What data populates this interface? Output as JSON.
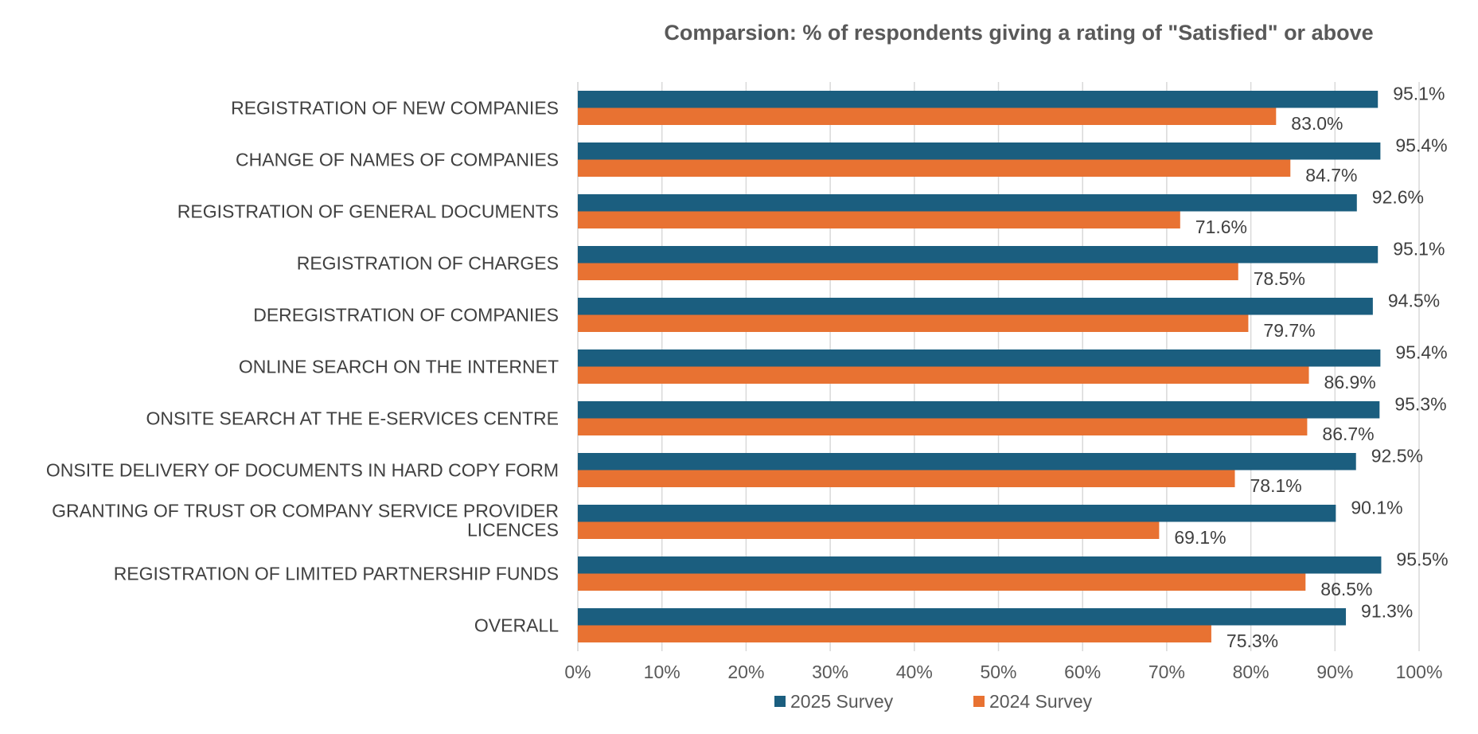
{
  "chart_data": {
    "type": "bar",
    "orientation": "horizontal",
    "title": "Comparsion: % of respondents giving a rating of \"Satisfied\" or above",
    "categories": [
      [
        "REGISTRATION OF NEW COMPANIES"
      ],
      [
        "CHANGE OF NAMES OF COMPANIES"
      ],
      [
        "REGISTRATION OF GENERAL DOCUMENTS"
      ],
      [
        "REGISTRATION OF CHARGES"
      ],
      [
        "DEREGISTRATION OF COMPANIES"
      ],
      [
        "ONLINE SEARCH ON THE INTERNET"
      ],
      [
        "ONSITE SEARCH AT THE E-SERVICES CENTRE"
      ],
      [
        "ONSITE DELIVERY OF DOCUMENTS IN HARD COPY FORM"
      ],
      [
        "GRANTING OF TRUST OR COMPANY SERVICE PROVIDER",
        "LICENCES"
      ],
      [
        "REGISTRATION OF LIMITED PARTNERSHIP FUNDS"
      ],
      [
        "OVERALL"
      ]
    ],
    "series": [
      {
        "name": "2025 Survey",
        "color": "#1b5e7f",
        "values": [
          95.1,
          95.4,
          92.6,
          95.1,
          94.5,
          95.4,
          95.3,
          92.5,
          90.1,
          95.5,
          91.3
        ],
        "labels": [
          "95.1%",
          "95.4%",
          "92.6%",
          "95.1%",
          "94.5%",
          "95.4%",
          "95.3%",
          "92.5%",
          "90.1%",
          "95.5%",
          "91.3%"
        ]
      },
      {
        "name": "2024 Survey",
        "color": "#e87232",
        "values": [
          83.0,
          84.7,
          71.6,
          78.5,
          79.7,
          86.9,
          86.7,
          78.1,
          69.1,
          86.5,
          75.3
        ],
        "labels": [
          "83.0%",
          "84.7%",
          "71.6%",
          "78.5%",
          "79.7%",
          "86.9%",
          "86.7%",
          "78.1%",
          "69.1%",
          "86.5%",
          "75.3%"
        ]
      }
    ],
    "xlim": [
      0,
      100
    ],
    "xticks": [
      0,
      10,
      20,
      30,
      40,
      50,
      60,
      70,
      80,
      90,
      100
    ],
    "xtick_labels": [
      "0%",
      "10%",
      "20%",
      "30%",
      "40%",
      "50%",
      "60%",
      "70%",
      "80%",
      "90%",
      "100%"
    ],
    "grid": "vertical",
    "legend": "bottom",
    "gridline_color": "#d9d9d9"
  }
}
